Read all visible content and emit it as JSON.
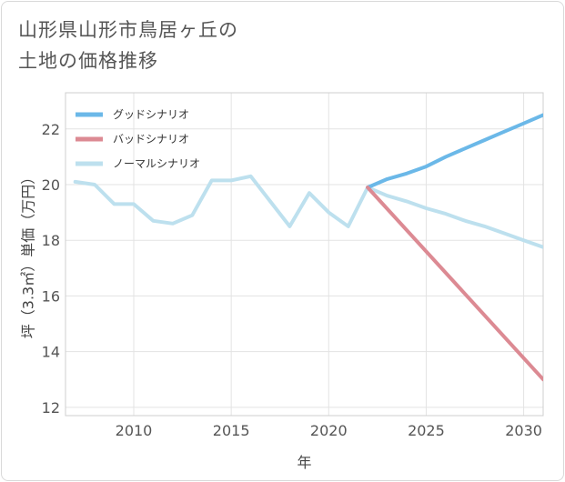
{
  "title_lines": [
    "山形県山形市鳥居ヶ丘の",
    "土地の価格推移"
  ],
  "chart_data": {
    "type": "line",
    "xlabel": "年",
    "ylabel": "坪（3.3㎡）単価（万円）",
    "xlim": [
      2006.5,
      2031
    ],
    "ylim": [
      11.7,
      23.3
    ],
    "xticks": [
      2010,
      2015,
      2020,
      2025,
      2030
    ],
    "yticks": [
      12,
      14,
      16,
      18,
      20,
      22
    ],
    "grid": true,
    "legend_position": "top-left",
    "series": [
      {
        "name": "グッドシナリオ",
        "color": "#6bb8e8",
        "x": [
          2022,
          2023,
          2024,
          2025,
          2026,
          2027,
          2028,
          2029,
          2030,
          2031
        ],
        "y": [
          19.9,
          20.2,
          20.4,
          20.65,
          21.0,
          21.3,
          21.6,
          21.9,
          22.2,
          22.5
        ]
      },
      {
        "name": "バッドシナリオ",
        "color": "#dc8a93",
        "x": [
          2022,
          2031
        ],
        "y": [
          19.9,
          13.0
        ]
      },
      {
        "name": "ノーマルシナリオ",
        "color": "#bde0ee",
        "x": [
          2007,
          2008,
          2009,
          2010,
          2011,
          2012,
          2013,
          2014,
          2015,
          2016,
          2017,
          2018,
          2019,
          2020,
          2021,
          2022,
          2023,
          2024,
          2025,
          2026,
          2027,
          2028,
          2029,
          2030,
          2031
        ],
        "y": [
          20.1,
          20.0,
          19.3,
          19.3,
          18.7,
          18.6,
          18.9,
          20.15,
          20.15,
          20.3,
          19.4,
          18.5,
          19.7,
          19.0,
          18.5,
          19.9,
          19.6,
          19.4,
          19.15,
          18.95,
          18.7,
          18.5,
          18.25,
          18.0,
          17.75
        ]
      }
    ]
  }
}
